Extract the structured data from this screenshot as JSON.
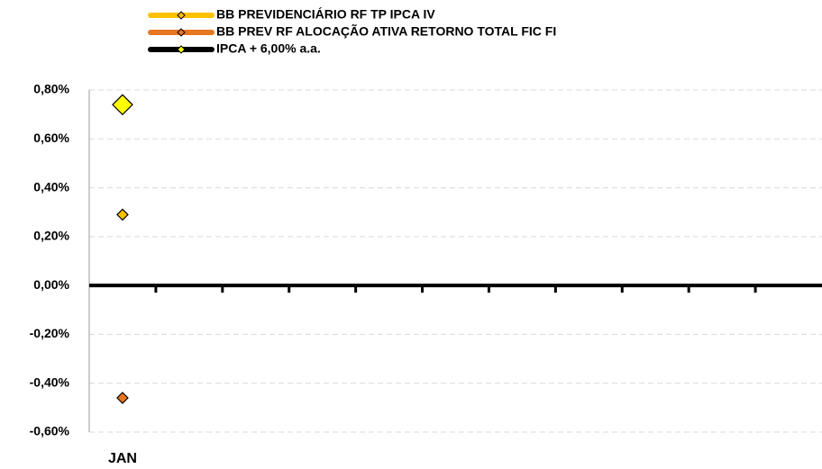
{
  "chart_data": {
    "type": "line",
    "categories": [
      "JAN",
      null,
      null,
      null,
      null,
      null,
      null,
      null,
      null,
      null,
      null
    ],
    "series": [
      {
        "name": "BB PREVIDENCIÁRIO RF TP IPCA IV",
        "color": "#FFC000",
        "marker_color": "#FFC000",
        "values": [
          0.29,
          null,
          null,
          null,
          null,
          null,
          null,
          null,
          null,
          null,
          null
        ]
      },
      {
        "name": "BB PREV RF ALOCAÇÃO ATIVA RETORNO TOTAL FIC FI",
        "color": "#E87722",
        "marker_color": "#E87722",
        "values": [
          -0.46,
          null,
          null,
          null,
          null,
          null,
          null,
          null,
          null,
          null,
          null
        ]
      },
      {
        "name": "IPCA + 6,00% a.a.",
        "color": "#000000",
        "marker_color": "#FFFF00",
        "values": [
          0.74,
          null,
          null,
          null,
          null,
          null,
          null,
          null,
          null,
          null,
          null
        ]
      }
    ],
    "ylim": [
      -0.6,
      0.8
    ],
    "yticks": [
      {
        "value": -0.6,
        "label": "-0,60%"
      },
      {
        "value": -0.4,
        "label": "-0,40%"
      },
      {
        "value": -0.2,
        "label": "-0,20%"
      },
      {
        "value": 0,
        "label": "0,00%"
      },
      {
        "value": 0.2,
        "label": "0,20%"
      },
      {
        "value": 0.4,
        "label": "0,40%"
      },
      {
        "value": 0.6,
        "label": "0,60%"
      },
      {
        "value": 0.8,
        "label": "0,80%"
      }
    ],
    "grid": true,
    "legend": "top"
  }
}
